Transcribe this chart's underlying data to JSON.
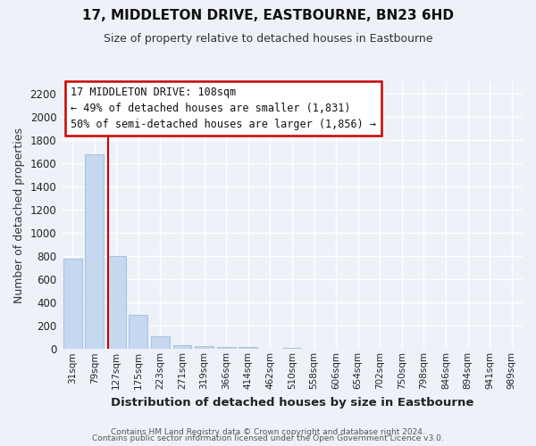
{
  "title": "17, MIDDLETON DRIVE, EASTBOURNE, BN23 6HD",
  "subtitle": "Size of property relative to detached houses in Eastbourne",
  "xlabel": "Distribution of detached houses by size in Eastbourne",
  "ylabel": "Number of detached properties",
  "bar_labels": [
    "31sqm",
    "79sqm",
    "127sqm",
    "175sqm",
    "223sqm",
    "271sqm",
    "319sqm",
    "366sqm",
    "414sqm",
    "462sqm",
    "510sqm",
    "558sqm",
    "606sqm",
    "654sqm",
    "702sqm",
    "750sqm",
    "798sqm",
    "846sqm",
    "894sqm",
    "941sqm",
    "989sqm"
  ],
  "bar_values": [
    780,
    1680,
    800,
    295,
    110,
    35,
    22,
    18,
    15,
    0,
    10,
    0,
    0,
    0,
    0,
    0,
    0,
    0,
    0,
    0,
    0
  ],
  "bar_color": "#c5d8f0",
  "bar_edgecolor": "#a8c4e0",
  "vline_color": "#cc0000",
  "annotation_title": "17 MIDDLETON DRIVE: 108sqm",
  "annotation_line1": "← 49% of detached houses are smaller (1,831)",
  "annotation_line2": "50% of semi-detached houses are larger (1,856) →",
  "annotation_box_facecolor": "#ffffff",
  "annotation_box_edgecolor": "#cc0000",
  "ylim": [
    0,
    2300
  ],
  "yticks": [
    0,
    200,
    400,
    600,
    800,
    1000,
    1200,
    1400,
    1600,
    1800,
    2000,
    2200
  ],
  "footnote1": "Contains HM Land Registry data © Crown copyright and database right 2024.",
  "footnote2": "Contains public sector information licensed under the Open Government Licence v3.0.",
  "bg_color": "#eef2f8",
  "grid_color": "#ffffff",
  "title_fontsize": 11,
  "subtitle_fontsize": 9,
  "ylabel_fontsize": 9,
  "xlabel_fontsize": 9.5,
  "annotation_fontsize": 8.5,
  "tick_labelsize": 8.5,
  "xtick_labelsize": 7.5
}
